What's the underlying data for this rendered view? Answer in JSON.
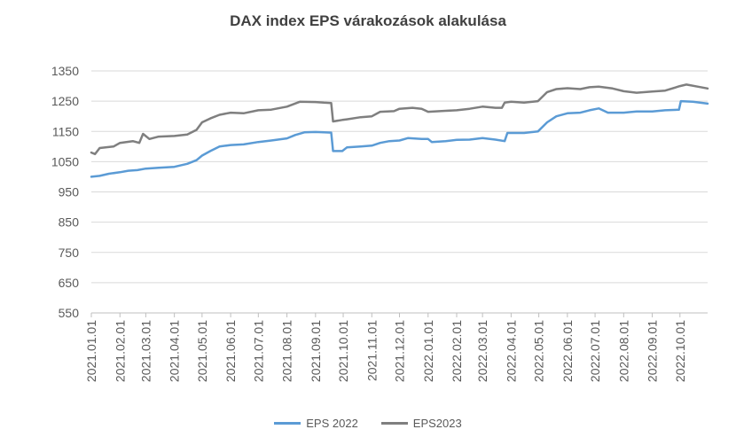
{
  "chart_data": {
    "type": "line",
    "title": "DAX index EPS várakozások  alakulása",
    "xlabel": "",
    "ylabel": "",
    "ylim": [
      550,
      1350
    ],
    "yticks": [
      550,
      650,
      750,
      850,
      950,
      1050,
      1150,
      1250,
      1350
    ],
    "ytick_labels": [
      "550",
      "650",
      "750",
      "850",
      "950",
      "1050",
      "1150",
      "1250",
      "1350"
    ],
    "x_tick_labels": [
      "2021.01.01",
      "2021.02.01",
      "2021.03.01",
      "2021.04.01",
      "2021.05.01",
      "2021.06.01",
      "2021.07.01",
      "2021.08.01",
      "2021.09.01",
      "2021.10.01",
      "2021.11.01",
      "2021.12.01",
      "2022.01.01",
      "2022.02.01",
      "2022.03.01",
      "2022.04.01",
      "2022.05.01",
      "2022.06.01",
      "2022.07.01",
      "2022.08.01",
      "2022.09.01",
      "2022.10.01"
    ],
    "grid": true,
    "legend_position": "bottom",
    "x_range": [
      "2021-01-01",
      "2022-10-31"
    ],
    "series": [
      {
        "name": "EPS 2022",
        "color": "#5B9BD5",
        "points": [
          [
            "2021-01-01",
            1000
          ],
          [
            "2021-01-10",
            1003
          ],
          [
            "2021-01-20",
            1010
          ],
          [
            "2021-02-01",
            1015
          ],
          [
            "2021-02-10",
            1020
          ],
          [
            "2021-02-20",
            1022
          ],
          [
            "2021-03-01",
            1027
          ],
          [
            "2021-03-15",
            1030
          ],
          [
            "2021-04-01",
            1033
          ],
          [
            "2021-04-15",
            1043
          ],
          [
            "2021-04-25",
            1055
          ],
          [
            "2021-05-01",
            1070
          ],
          [
            "2021-05-10",
            1085
          ],
          [
            "2021-05-20",
            1100
          ],
          [
            "2021-06-01",
            1105
          ],
          [
            "2021-06-15",
            1107
          ],
          [
            "2021-07-01",
            1115
          ],
          [
            "2021-07-15",
            1120
          ],
          [
            "2021-08-01",
            1127
          ],
          [
            "2021-08-10",
            1138
          ],
          [
            "2021-08-20",
            1147
          ],
          [
            "2021-09-01",
            1148
          ],
          [
            "2021-09-10",
            1147
          ],
          [
            "2021-09-18",
            1146
          ],
          [
            "2021-09-20",
            1085
          ],
          [
            "2021-09-30",
            1085
          ],
          [
            "2021-10-05",
            1097
          ],
          [
            "2021-10-20",
            1100
          ],
          [
            "2021-11-01",
            1103
          ],
          [
            "2021-11-10",
            1112
          ],
          [
            "2021-11-20",
            1118
          ],
          [
            "2021-12-01",
            1120
          ],
          [
            "2021-12-10",
            1128
          ],
          [
            "2021-12-25",
            1125
          ],
          [
            "2022-01-01",
            1125
          ],
          [
            "2022-01-05",
            1115
          ],
          [
            "2022-01-20",
            1118
          ],
          [
            "2022-02-01",
            1122
          ],
          [
            "2022-02-15",
            1123
          ],
          [
            "2022-03-01",
            1128
          ],
          [
            "2022-03-15",
            1123
          ],
          [
            "2022-03-25",
            1118
          ],
          [
            "2022-03-28",
            1145
          ],
          [
            "2022-04-01",
            1145
          ],
          [
            "2022-04-15",
            1145
          ],
          [
            "2022-04-30",
            1150
          ],
          [
            "2022-05-10",
            1180
          ],
          [
            "2022-05-20",
            1200
          ],
          [
            "2022-06-01",
            1210
          ],
          [
            "2022-06-15",
            1212
          ],
          [
            "2022-06-25",
            1220
          ],
          [
            "2022-07-05",
            1226
          ],
          [
            "2022-07-15",
            1212
          ],
          [
            "2022-08-01",
            1212
          ],
          [
            "2022-08-15",
            1216
          ],
          [
            "2022-09-01",
            1216
          ],
          [
            "2022-09-15",
            1220
          ],
          [
            "2022-09-30",
            1222
          ],
          [
            "2022-10-02",
            1250
          ],
          [
            "2022-10-15",
            1248
          ],
          [
            "2022-10-31",
            1242
          ]
        ]
      },
      {
        "name": "EPS2023",
        "color": "#7F7F7F",
        "points": [
          [
            "2021-01-01",
            1080
          ],
          [
            "2021-01-05",
            1075
          ],
          [
            "2021-01-10",
            1095
          ],
          [
            "2021-01-25",
            1100
          ],
          [
            "2021-02-01",
            1112
          ],
          [
            "2021-02-15",
            1118
          ],
          [
            "2021-02-22",
            1112
          ],
          [
            "2021-02-26",
            1142
          ],
          [
            "2021-03-05",
            1125
          ],
          [
            "2021-03-15",
            1133
          ],
          [
            "2021-04-01",
            1135
          ],
          [
            "2021-04-15",
            1140
          ],
          [
            "2021-04-25",
            1155
          ],
          [
            "2021-05-01",
            1180
          ],
          [
            "2021-05-10",
            1193
          ],
          [
            "2021-05-20",
            1205
          ],
          [
            "2021-06-01",
            1212
          ],
          [
            "2021-06-15",
            1210
          ],
          [
            "2021-07-01",
            1220
          ],
          [
            "2021-07-15",
            1222
          ],
          [
            "2021-08-01",
            1232
          ],
          [
            "2021-08-15",
            1248
          ],
          [
            "2021-09-01",
            1247
          ],
          [
            "2021-09-10",
            1245
          ],
          [
            "2021-09-18",
            1244
          ],
          [
            "2021-09-20",
            1183
          ],
          [
            "2021-09-30",
            1188
          ],
          [
            "2021-10-05",
            1190
          ],
          [
            "2021-10-20",
            1197
          ],
          [
            "2021-11-01",
            1200
          ],
          [
            "2021-11-10",
            1215
          ],
          [
            "2021-11-25",
            1217
          ],
          [
            "2021-12-01",
            1225
          ],
          [
            "2021-12-15",
            1228
          ],
          [
            "2021-12-25",
            1225
          ],
          [
            "2022-01-01",
            1215
          ],
          [
            "2022-01-20",
            1218
          ],
          [
            "2022-02-01",
            1220
          ],
          [
            "2022-02-15",
            1225
          ],
          [
            "2022-03-01",
            1232
          ],
          [
            "2022-03-15",
            1228
          ],
          [
            "2022-03-22",
            1228
          ],
          [
            "2022-03-25",
            1245
          ],
          [
            "2022-04-01",
            1248
          ],
          [
            "2022-04-15",
            1245
          ],
          [
            "2022-04-30",
            1250
          ],
          [
            "2022-05-10",
            1280
          ],
          [
            "2022-05-20",
            1290
          ],
          [
            "2022-06-01",
            1293
          ],
          [
            "2022-06-15",
            1290
          ],
          [
            "2022-06-25",
            1296
          ],
          [
            "2022-07-05",
            1298
          ],
          [
            "2022-07-20",
            1292
          ],
          [
            "2022-08-01",
            1283
          ],
          [
            "2022-08-15",
            1278
          ],
          [
            "2022-09-01",
            1282
          ],
          [
            "2022-09-15",
            1285
          ],
          [
            "2022-10-01",
            1300
          ],
          [
            "2022-10-08",
            1305
          ],
          [
            "2022-10-20",
            1298
          ],
          [
            "2022-10-31",
            1292
          ]
        ]
      }
    ]
  }
}
